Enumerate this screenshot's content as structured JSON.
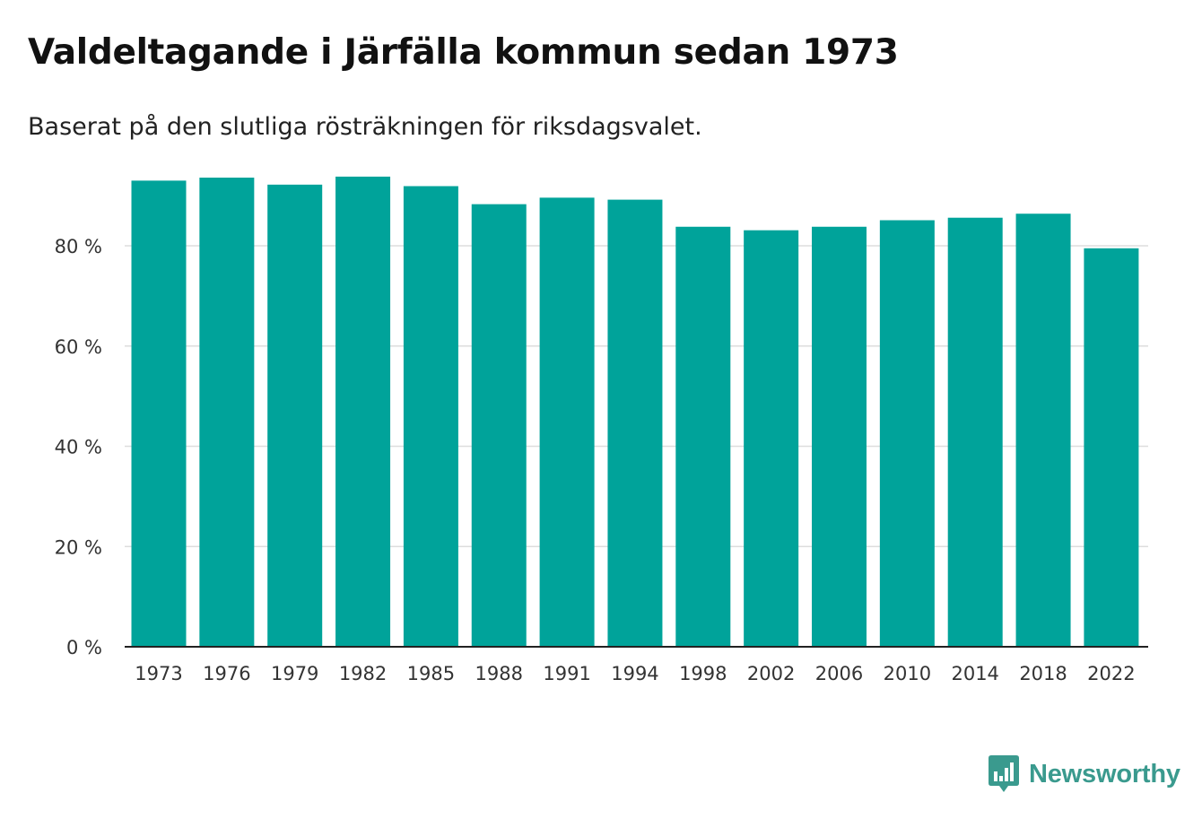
{
  "title": "Valdeltagande i Järfälla kommun sedan 1973",
  "subtitle": "Baserat på den slutliga rösträkningen för riksdagsvalet.",
  "brand": {
    "name": "Newsworthy",
    "color": "#3a9a8e"
  },
  "colors": {
    "bar": "#00a39a",
    "grid": "#dddddd",
    "axis": "#222222"
  },
  "chart_data": {
    "type": "bar",
    "title": "Valdeltagande i Järfälla kommun sedan 1973",
    "subtitle": "Baserat på den slutliga rösträkningen för riksdagsvalet.",
    "xlabel": "",
    "ylabel": "",
    "categories": [
      "1973",
      "1976",
      "1979",
      "1982",
      "1985",
      "1988",
      "1991",
      "1994",
      "1998",
      "2002",
      "2006",
      "2010",
      "2014",
      "2018",
      "2022"
    ],
    "values": [
      93.0,
      93.6,
      92.2,
      93.8,
      91.9,
      88.3,
      89.6,
      89.2,
      83.8,
      83.1,
      83.8,
      85.1,
      85.6,
      86.4,
      79.5
    ],
    "ylim": [
      0,
      100
    ],
    "yticks": [
      0,
      20,
      40,
      60,
      80
    ],
    "ytick_labels": [
      "0 %",
      "20 %",
      "40 %",
      "60 %",
      "80 %"
    ],
    "grid": true,
    "legend": "none"
  }
}
